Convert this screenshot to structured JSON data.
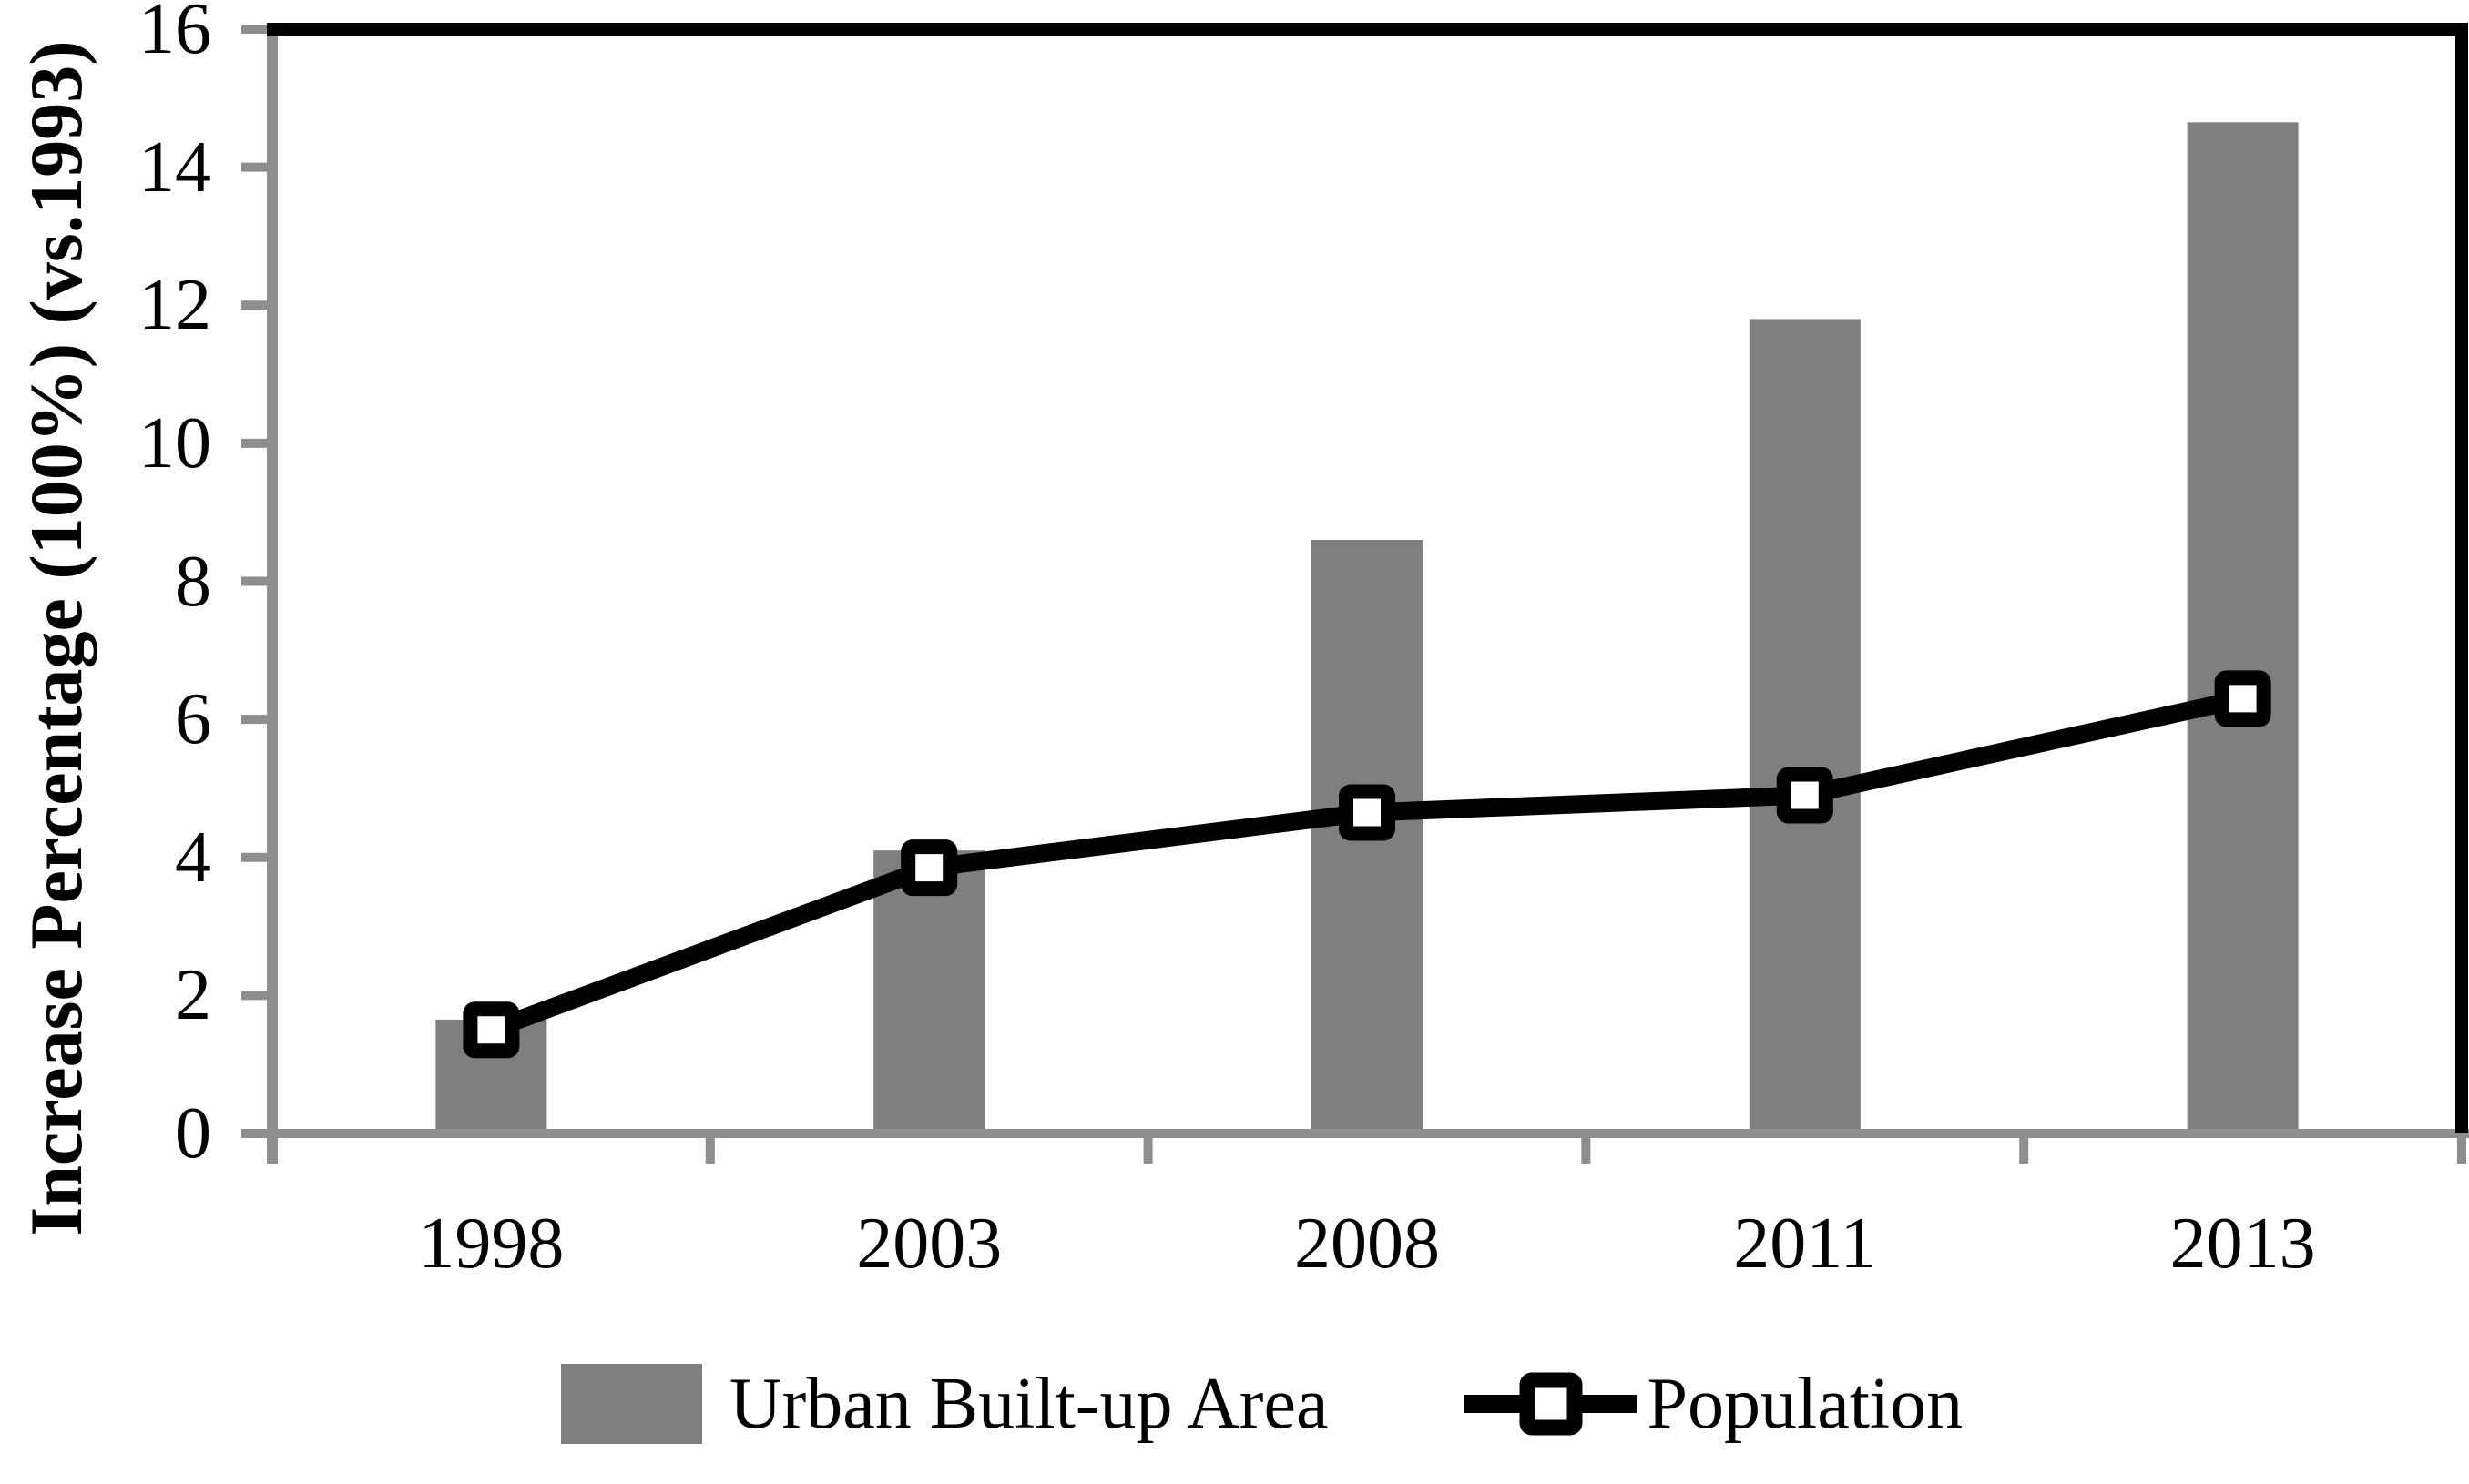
{
  "chart_data": {
    "type": "bar+line",
    "title": "",
    "xlabel": "",
    "ylabel": "Increase Percentage (100%) (vs.1993)",
    "categories": [
      "1998",
      "2003",
      "2008",
      "2011",
      "2013"
    ],
    "series": [
      {
        "name": "Urban Built-up Area",
        "type": "bar",
        "values": [
          1.65,
          4.1,
          8.6,
          11.8,
          14.65
        ],
        "color": "#7f7f7f"
      },
      {
        "name": "Population",
        "type": "line",
        "values": [
          1.5,
          3.85,
          4.65,
          4.9,
          6.3
        ],
        "color": "#000000",
        "marker": "white-square"
      }
    ],
    "ylim": [
      0,
      16
    ],
    "y_ticks": [
      0,
      2,
      4,
      6,
      8,
      10,
      12,
      14,
      16
    ],
    "grid": false,
    "legend_position": "bottom",
    "axis_color": "#8e8e8e",
    "frame_color": "#000000",
    "background": "#ffffff"
  },
  "legend": {
    "items": [
      {
        "label": "Urban Built-up Area",
        "swatch": "bar"
      },
      {
        "label": "Population",
        "swatch": "line-marker"
      }
    ]
  }
}
